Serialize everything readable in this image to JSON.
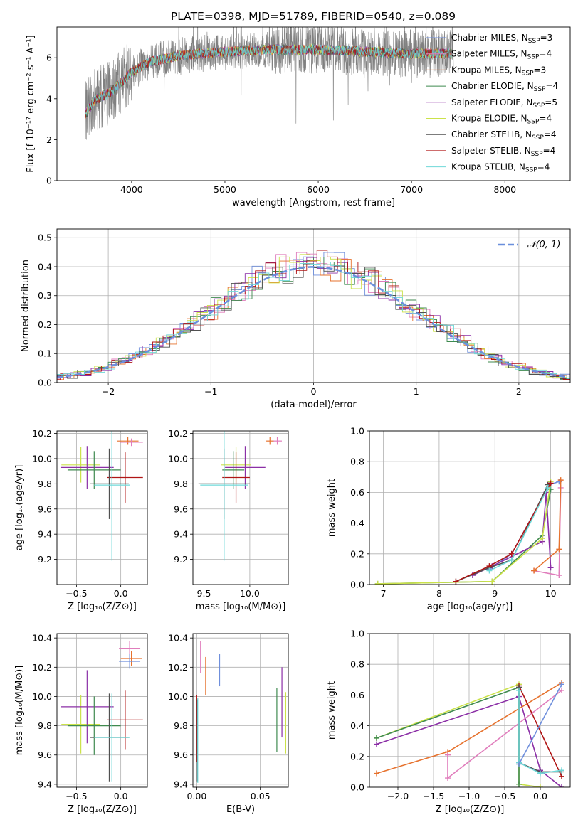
{
  "figure_title": "PLATE=0398, MJD=51789, FIBERID=0540, z=0.089",
  "colors": {
    "Chabrier MILES": "#6f8fdc",
    "Salpeter MILES": "#e07dbc",
    "Kroupa MILES": "#e6722e",
    "Chabrier ELODIE": "#3f8a4f",
    "Salpeter ELODIE": "#8b2fa6",
    "Kroupa ELODIE": "#cbe24a",
    "Chabrier STELIB": "#505050",
    "Salpeter STELIB": "#b01515",
    "Kroupa STELIB": "#6fd8d8",
    "data": "#808080",
    "normal_curve": "#6a8fdc"
  },
  "chart_data": [
    {
      "id": "spectrum",
      "type": "line",
      "xlabel": "wavelength [Angstrom, rest frame]",
      "ylabel": "Flux [f_λ 10^-17 erg cm^-2 s^-1 A^-1]",
      "xlim": [
        3200,
        8700
      ],
      "ylim": [
        0,
        7.5
      ],
      "xticks": [
        4000,
        5000,
        6000,
        7000,
        8000
      ],
      "yticks": [
        0,
        2,
        4,
        6
      ],
      "grid": false,
      "legend_position": "right",
      "continuum_model": {
        "x": [
          3500,
          3600,
          3800,
          4000,
          4200,
          4500,
          5000,
          5500,
          6000,
          6500,
          7000,
          7450
        ],
        "y": [
          3.2,
          3.9,
          4.4,
          5.3,
          5.8,
          6.1,
          6.3,
          6.4,
          6.4,
          6.3,
          6.2,
          6.2
        ]
      },
      "legend": [
        "Chabrier MILES, N_SSP=3",
        "Salpeter MILES, N_SSP=4",
        "Kroupa MILES, N_SSP=3",
        "Chabrier ELODIE, N_SSP=4",
        "Salpeter ELODIE, N_SSP=5",
        "Kroupa ELODIE, N_SSP=4",
        "Chabrier STELIB, N_SSP=4",
        "Salpeter STELIB, N_SSP=4",
        "Kroupa STELIB, N_SSP=4"
      ]
    },
    {
      "id": "residuals",
      "type": "histogram",
      "xlabel": "(data-model)/error",
      "ylabel": "Normed distribution",
      "xlim": [
        -2.5,
        2.5
      ],
      "ylim": [
        0,
        0.53
      ],
      "xticks": [
        -2,
        -1,
        0,
        1,
        2
      ],
      "yticks": [
        0.0,
        0.1,
        0.2,
        0.3,
        0.4,
        0.5
      ],
      "grid": true,
      "legend_position": "top-right",
      "legend": [
        "𝒩(0, 1)"
      ]
    },
    {
      "id": "age_vs_z",
      "type": "scatter",
      "xlabel": "Z [log10(Z/Z☉)]",
      "ylabel": "age [log10(age/yr)]",
      "xlim": [
        -0.72,
        0.3
      ],
      "ylim": [
        9.0,
        10.22
      ],
      "xticks": [
        -0.5,
        0.0
      ],
      "yticks": [
        9.2,
        9.4,
        9.6,
        9.8,
        10.0,
        10.2
      ],
      "grid": true,
      "points": [
        {
          "series": "Kroupa MILES",
          "x": 0.08,
          "y": 10.14,
          "xerr": 0.12,
          "yerr": 0.03
        },
        {
          "series": "Salpeter MILES",
          "x": 0.12,
          "y": 10.13,
          "xerr": 0.13,
          "yerr": 0.03
        },
        {
          "series": "Kroupa ELODIE",
          "x": -0.45,
          "y": 9.95,
          "xerr": 0.22,
          "yerr": 0.14
        },
        {
          "series": "Salpeter ELODIE",
          "x": -0.38,
          "y": 9.93,
          "xerr": 0.3,
          "yerr": 0.17
        },
        {
          "series": "Chabrier ELODIE",
          "x": -0.3,
          "y": 9.91,
          "xerr": 0.3,
          "yerr": 0.15
        },
        {
          "series": "Salpeter STELIB",
          "x": 0.05,
          "y": 9.85,
          "xerr": 0.2,
          "yerr": 0.2
        },
        {
          "series": "Chabrier STELIB",
          "x": -0.13,
          "y": 9.8,
          "xerr": 0.22,
          "yerr": 0.28
        },
        {
          "series": "Kroupa STELIB",
          "x": -0.1,
          "y": 9.79,
          "xerr": 0.2,
          "yerr": 0.6
        }
      ]
    },
    {
      "id": "age_vs_mass",
      "type": "scatter",
      "xlabel": "mass [log10(M/M☉)]",
      "ylabel": "",
      "xlim": [
        9.38,
        10.42
      ],
      "ylim": [
        9.0,
        10.22
      ],
      "xticks": [
        9.5,
        10.0
      ],
      "yticks": [
        9.2,
        9.4,
        9.6,
        9.8,
        10.0,
        10.2
      ],
      "grid": true,
      "points": [
        {
          "series": "Salpeter MILES",
          "x": 10.3,
          "y": 10.14,
          "xerr": 0.05,
          "yerr": 0.03
        },
        {
          "series": "Kroupa MILES",
          "x": 10.22,
          "y": 10.14,
          "xerr": 0.04,
          "yerr": 0.03
        },
        {
          "series": "Kroupa ELODIE",
          "x": 9.85,
          "y": 9.95,
          "xerr": 0.16,
          "yerr": 0.14
        },
        {
          "series": "Salpeter ELODIE",
          "x": 9.95,
          "y": 9.93,
          "xerr": 0.22,
          "yerr": 0.17
        },
        {
          "series": "Chabrier ELODIE",
          "x": 9.82,
          "y": 9.91,
          "xerr": 0.12,
          "yerr": 0.15
        },
        {
          "series": "Salpeter STELIB",
          "x": 9.85,
          "y": 9.85,
          "xerr": 0.15,
          "yerr": 0.2
        },
        {
          "series": "Chabrier STELIB",
          "x": 9.72,
          "y": 9.8,
          "xerr": 0.28,
          "yerr": 0.28
        },
        {
          "series": "Kroupa STELIB",
          "x": 9.72,
          "y": 9.79,
          "xerr": 0.26,
          "yerr": 0.6
        }
      ]
    },
    {
      "id": "weight_vs_age",
      "type": "line",
      "xlabel": "age [log10(age/yr)]",
      "ylabel": "mass weight",
      "xlim": [
        6.75,
        10.35
      ],
      "ylim": [
        0,
        1.0
      ],
      "xticks": [
        7,
        8,
        9,
        10
      ],
      "yticks": [
        0.0,
        0.2,
        0.4,
        0.6,
        0.8,
        1.0
      ],
      "grid": true,
      "series": [
        {
          "name": "Chabrier MILES",
          "x": [
            8.9,
            9.3,
            9.98,
            10.15
          ],
          "y": [
            0.1,
            0.2,
            0.65,
            0.67
          ]
        },
        {
          "name": "Salpeter MILES",
          "x": [
            9.7,
            10.15,
            10.18
          ],
          "y": [
            0.09,
            0.06,
            0.63
          ]
        },
        {
          "name": "Kroupa MILES",
          "x": [
            9.7,
            10.15,
            10.18
          ],
          "y": [
            0.09,
            0.23,
            0.68
          ]
        },
        {
          "name": "Chabrier ELODIE",
          "x": [
            6.9,
            8.95,
            9.85,
            10.0
          ],
          "y": [
            0.005,
            0.02,
            0.32,
            0.62
          ]
        },
        {
          "name": "Salpeter ELODIE",
          "x": [
            8.6,
            8.95,
            9.85,
            9.92,
            10.0
          ],
          "y": [
            0.06,
            0.12,
            0.28,
            0.6,
            0.11
          ]
        },
        {
          "name": "Kroupa ELODIE",
          "x": [
            6.9,
            8.95,
            9.85,
            10.0
          ],
          "y": [
            0.005,
            0.02,
            0.3,
            0.67
          ]
        },
        {
          "name": "Chabrier STELIB",
          "x": [
            8.3,
            8.9,
            9.3,
            9.95
          ],
          "y": [
            0.02,
            0.11,
            0.16,
            0.65
          ]
        },
        {
          "name": "Salpeter STELIB",
          "x": [
            8.3,
            8.9,
            9.3,
            10.0
          ],
          "y": [
            0.02,
            0.12,
            0.2,
            0.66
          ]
        },
        {
          "name": "Kroupa STELIB",
          "x": [
            8.9,
            9.3,
            9.95
          ],
          "y": [
            0.09,
            0.16,
            0.63
          ]
        }
      ]
    },
    {
      "id": "mass_vs_z",
      "type": "scatter",
      "xlabel": "Z [log10(Z/Z☉)]",
      "ylabel": "mass [log10(M/M☉)]",
      "xlim": [
        -0.72,
        0.3
      ],
      "ylim": [
        9.38,
        10.43
      ],
      "xticks": [
        -0.5,
        0.0
      ],
      "yticks": [
        9.4,
        9.6,
        9.8,
        10.0,
        10.2,
        10.4
      ],
      "grid": true,
      "points": [
        {
          "series": "Salpeter MILES",
          "x": 0.1,
          "y": 10.33,
          "xerr": 0.12,
          "yerr": 0.05
        },
        {
          "series": "Kroupa MILES",
          "x": 0.12,
          "y": 10.26,
          "xerr": 0.12,
          "yerr": 0.05
        },
        {
          "series": "Chabrier MILES",
          "x": 0.1,
          "y": 10.24,
          "xerr": 0.12,
          "yerr": 0.05
        },
        {
          "series": "Kroupa ELODIE",
          "x": -0.45,
          "y": 9.81,
          "xerr": 0.22,
          "yerr": 0.2
        },
        {
          "series": "Salpeter ELODIE",
          "x": -0.38,
          "y": 9.93,
          "xerr": 0.3,
          "yerr": 0.25
        },
        {
          "series": "Chabrier ELODIE",
          "x": -0.3,
          "y": 9.8,
          "xerr": 0.3,
          "yerr": 0.2
        },
        {
          "series": "Salpeter STELIB",
          "x": 0.05,
          "y": 9.84,
          "xerr": 0.2,
          "yerr": 0.2
        },
        {
          "series": "Chabrier STELIB",
          "x": -0.13,
          "y": 9.72,
          "xerr": 0.22,
          "yerr": 0.3
        },
        {
          "series": "Kroupa STELIB",
          "x": -0.1,
          "y": 9.72,
          "xerr": 0.2,
          "yerr": 0.3
        }
      ]
    },
    {
      "id": "mass_vs_ebv",
      "type": "scatter",
      "xlabel": "E(B-V)",
      "ylabel": "",
      "xlim": [
        -0.003,
        0.072
      ],
      "ylim": [
        9.38,
        10.43
      ],
      "xticks": [
        0.0,
        0.05
      ],
      "yticks": [
        9.4,
        9.6,
        9.8,
        10.0,
        10.2,
        10.4
      ],
      "grid": true,
      "points": [
        {
          "series": "Salpeter MILES",
          "x": 0.003,
          "y": 10.27,
          "yerr": 0.11
        },
        {
          "series": "Kroupa MILES",
          "x": 0.007,
          "y": 10.14,
          "yerr": 0.13
        },
        {
          "series": "Chabrier MILES",
          "x": 0.018,
          "y": 10.18,
          "yerr": 0.11
        },
        {
          "series": "Kroupa ELODIE",
          "x": 0.07,
          "y": 9.82,
          "yerr": 0.21
        },
        {
          "series": "Salpeter ELODIE",
          "x": 0.067,
          "y": 9.96,
          "yerr": 0.24
        },
        {
          "series": "Chabrier ELODIE",
          "x": 0.063,
          "y": 9.84,
          "yerr": 0.22
        },
        {
          "series": "Salpeter STELIB",
          "x": 0.0,
          "y": 9.78,
          "yerr": 0.23
        },
        {
          "series": "Chabrier STELIB",
          "x": 0.0005,
          "y": 9.7,
          "yerr": 0.28
        },
        {
          "series": "Kroupa STELIB",
          "x": 0.0008,
          "y": 9.7,
          "yerr": 0.29
        }
      ]
    },
    {
      "id": "weight_vs_z",
      "type": "line",
      "xlabel": "Z [log10(Z/Z☉)]",
      "ylabel": "mass weight",
      "xlim": [
        -2.4,
        0.42
      ],
      "ylim": [
        0,
        1.0
      ],
      "xticks": [
        -2.0,
        -1.5,
        -1.0,
        -0.5,
        0.0
      ],
      "yticks": [
        0.0,
        0.2,
        0.4,
        0.6,
        0.8,
        1.0
      ],
      "grid": true,
      "series": [
        {
          "name": "Kroupa ELODIE",
          "x": [
            -2.3,
            -0.3,
            -0.3,
            0.0
          ],
          "y": [
            0.32,
            0.67,
            0.02,
            0.0
          ]
        },
        {
          "name": "Chabrier ELODIE",
          "x": [
            -2.3,
            -0.3,
            -0.3
          ],
          "y": [
            0.32,
            0.65,
            0.02
          ]
        },
        {
          "name": "Salpeter ELODIE",
          "x": [
            -2.3,
            -0.3,
            0.0,
            0.3
          ],
          "y": [
            0.28,
            0.59,
            0.11,
            0.0
          ]
        },
        {
          "name": "Kroupa MILES",
          "x": [
            -2.3,
            -1.3,
            0.3
          ],
          "y": [
            0.09,
            0.23,
            0.68
          ]
        },
        {
          "name": "Salpeter MILES",
          "x": [
            -1.3,
            -1.3,
            0.3
          ],
          "y": [
            0.21,
            0.06,
            0.63
          ]
        },
        {
          "name": "Salpeter STELIB",
          "x": [
            -0.3,
            0.3
          ],
          "y": [
            0.66,
            0.07
          ]
        },
        {
          "name": "Chabrier STELIB",
          "x": [
            -0.3,
            -0.3,
            0.0,
            0.3
          ],
          "y": [
            0.65,
            0.16,
            0.1,
            0.1
          ]
        },
        {
          "name": "Kroupa STELIB",
          "x": [
            -0.3,
            -0.3,
            0.0,
            0.3
          ],
          "y": [
            0.63,
            0.16,
            0.09,
            0.11
          ]
        },
        {
          "name": "Chabrier MILES",
          "x": [
            -0.3,
            0.3
          ],
          "y": [
            0.15,
            0.67
          ]
        }
      ]
    }
  ]
}
